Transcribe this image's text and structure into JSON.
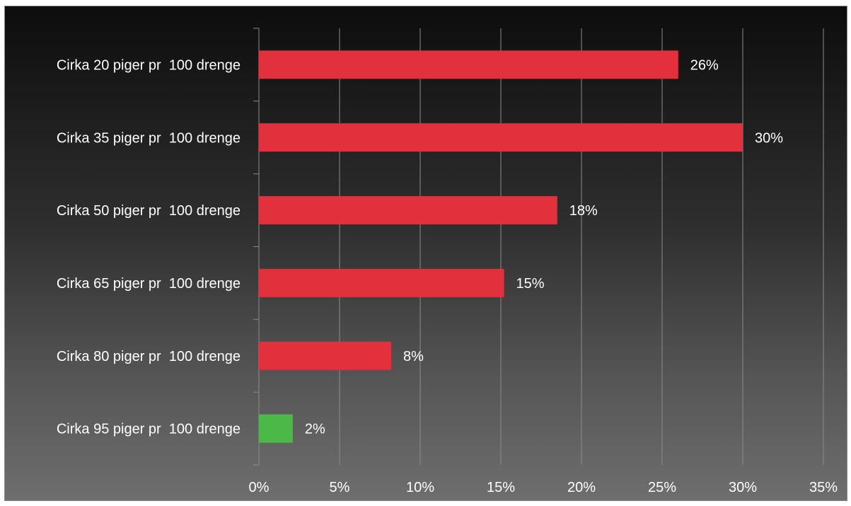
{
  "chart_data": {
    "type": "bar",
    "orientation": "horizontal",
    "categories": [
      "Cirka 20 piger pr  100 drenge",
      "Cirka 35 piger pr  100 drenge",
      "Cirka 50 piger pr  100 drenge",
      "Cirka 65 piger pr  100 drenge",
      "Cirka 80 piger pr  100 drenge",
      "Cirka 95 piger pr  100 drenge"
    ],
    "values": [
      26,
      30,
      18.5,
      15.2,
      8.2,
      2.1
    ],
    "value_labels": [
      "26%",
      "30%",
      "18%",
      "15%",
      "8%",
      "2%"
    ],
    "bar_colors": [
      "#e2303d",
      "#e2303d",
      "#e2303d",
      "#e2303d",
      "#e2303d",
      "#4cb848"
    ],
    "xlim": [
      0,
      35
    ],
    "x_ticks": [
      0,
      5,
      10,
      15,
      20,
      25,
      30,
      35
    ],
    "x_tick_labels": [
      "0%",
      "5%",
      "10%",
      "15%",
      "20%",
      "25%",
      "30%",
      "35%"
    ],
    "title": "",
    "xlabel": "",
    "ylabel": "",
    "grid": "vertical",
    "legend": "none",
    "background": "dark-gradient",
    "gridline_color": "#8c8c8c"
  }
}
